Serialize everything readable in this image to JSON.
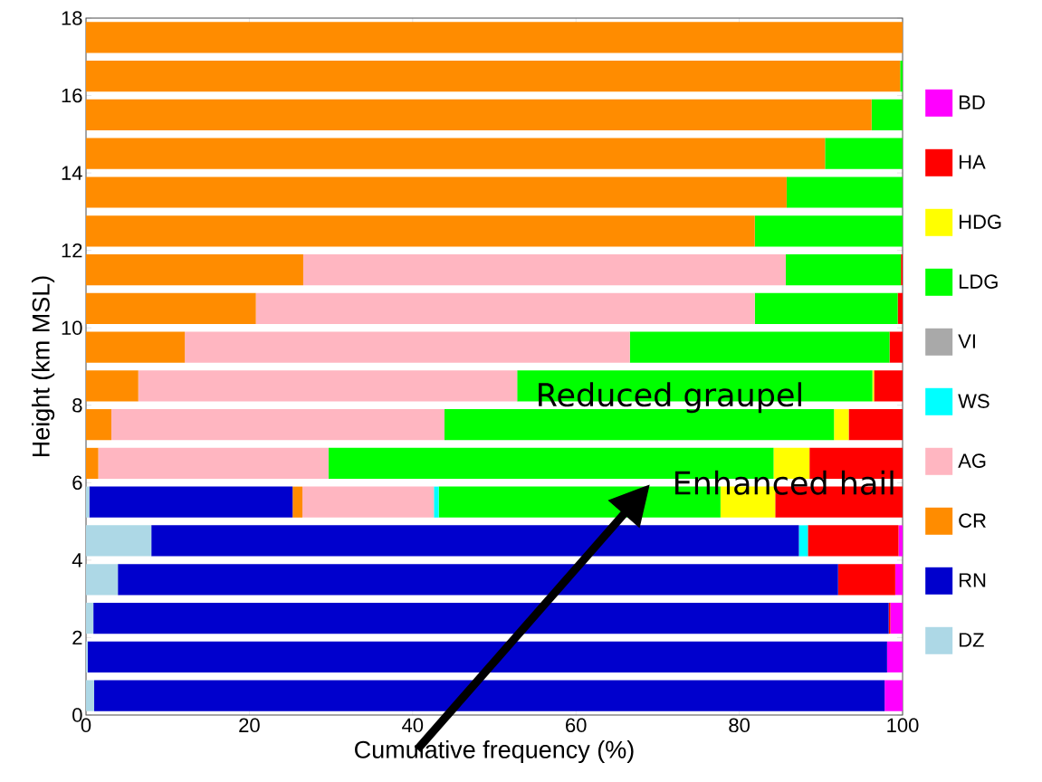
{
  "chart_data": {
    "type": "bar",
    "orientation": "horizontal",
    "stacked": true,
    "xlabel": "Cumulative frequency (%)",
    "ylabel": "Height (km MSL)",
    "x": [
      0.5,
      1.5,
      2.5,
      3.5,
      4.5,
      5.5,
      6.5,
      7.5,
      8.5,
      9.5,
      10.5,
      11.5,
      12.5,
      13.5,
      14.5,
      15.5,
      16.5,
      17.5
    ],
    "series": [
      {
        "name": "DZ",
        "color": "#add8e6",
        "values": [
          1.0,
          0.2,
          0.9,
          3.9,
          8.0,
          0.4,
          0,
          0,
          0,
          0,
          0,
          0,
          0,
          0,
          0,
          0,
          0,
          0
        ]
      },
      {
        "name": "RN",
        "color": "#0000cd",
        "values": [
          96.8,
          97.9,
          97.4,
          88.2,
          79.3,
          24.9,
          0,
          0,
          0,
          0,
          0,
          0,
          0,
          0,
          0,
          0,
          0,
          0
        ]
      },
      {
        "name": "CR",
        "color": "#ff8c00",
        "values": [
          0,
          0,
          0,
          0,
          0,
          1.2,
          1.5,
          3.1,
          6.4,
          12.1,
          20.8,
          26.6,
          81.9,
          85.8,
          90.5,
          96.2,
          99.7,
          100
        ]
      },
      {
        "name": "AG",
        "color": "#ffb6c1",
        "values": [
          0,
          0,
          0,
          0,
          0,
          16.1,
          28.2,
          40.8,
          46.4,
          54.5,
          61.1,
          59.1,
          0,
          0,
          0,
          0,
          0,
          0
        ]
      },
      {
        "name": "WS",
        "color": "#00ffff",
        "values": [
          0,
          0,
          0,
          0,
          1.1,
          0.6,
          0,
          0,
          0,
          0,
          0,
          0,
          0,
          0,
          0,
          0,
          0,
          0
        ]
      },
      {
        "name": "VI",
        "color": "#a9a9a9",
        "values": [
          0,
          0,
          0,
          0,
          0,
          0,
          0,
          0,
          0,
          0,
          0,
          0,
          0,
          0,
          0,
          0,
          0,
          0
        ]
      },
      {
        "name": "LDG",
        "color": "#00ff00",
        "values": [
          0,
          0,
          0,
          0,
          0,
          34.5,
          54.5,
          47.7,
          43.5,
          31.8,
          17.5,
          14.1,
          18.1,
          14.2,
          9.5,
          3.8,
          0.3,
          0
        ]
      },
      {
        "name": "HDG",
        "color": "#ffff00",
        "values": [
          0,
          0,
          0,
          0,
          0,
          6.7,
          4.4,
          1.8,
          0.2,
          0,
          0,
          0,
          0,
          0,
          0,
          0,
          0,
          0
        ]
      },
      {
        "name": "HA",
        "color": "#ff0000",
        "values": [
          0,
          0,
          0.2,
          7.0,
          11.1,
          15.6,
          11.4,
          6.6,
          3.5,
          1.6,
          0.6,
          0.2,
          0,
          0,
          0,
          0,
          0,
          0
        ]
      },
      {
        "name": "BD",
        "color": "#ff00ff",
        "values": [
          2.2,
          1.9,
          1.5,
          0.9,
          0.5,
          0,
          0,
          0,
          0,
          0,
          0,
          0,
          0,
          0,
          0,
          0,
          0,
          0
        ]
      }
    ],
    "xlim": [
      0,
      100
    ],
    "xticks": [
      0,
      20,
      40,
      60,
      80,
      100
    ],
    "ylim": [
      0,
      18
    ],
    "yticks": [
      0,
      2,
      4,
      6,
      8,
      10,
      12,
      14,
      16,
      18
    ],
    "legend": "right",
    "annotations": [
      {
        "text": "Reduced graupel",
        "x": 71.5,
        "y": 8.2
      },
      {
        "text": "Enhanced hail",
        "x": 85.5,
        "y": 6.0
      }
    ]
  }
}
